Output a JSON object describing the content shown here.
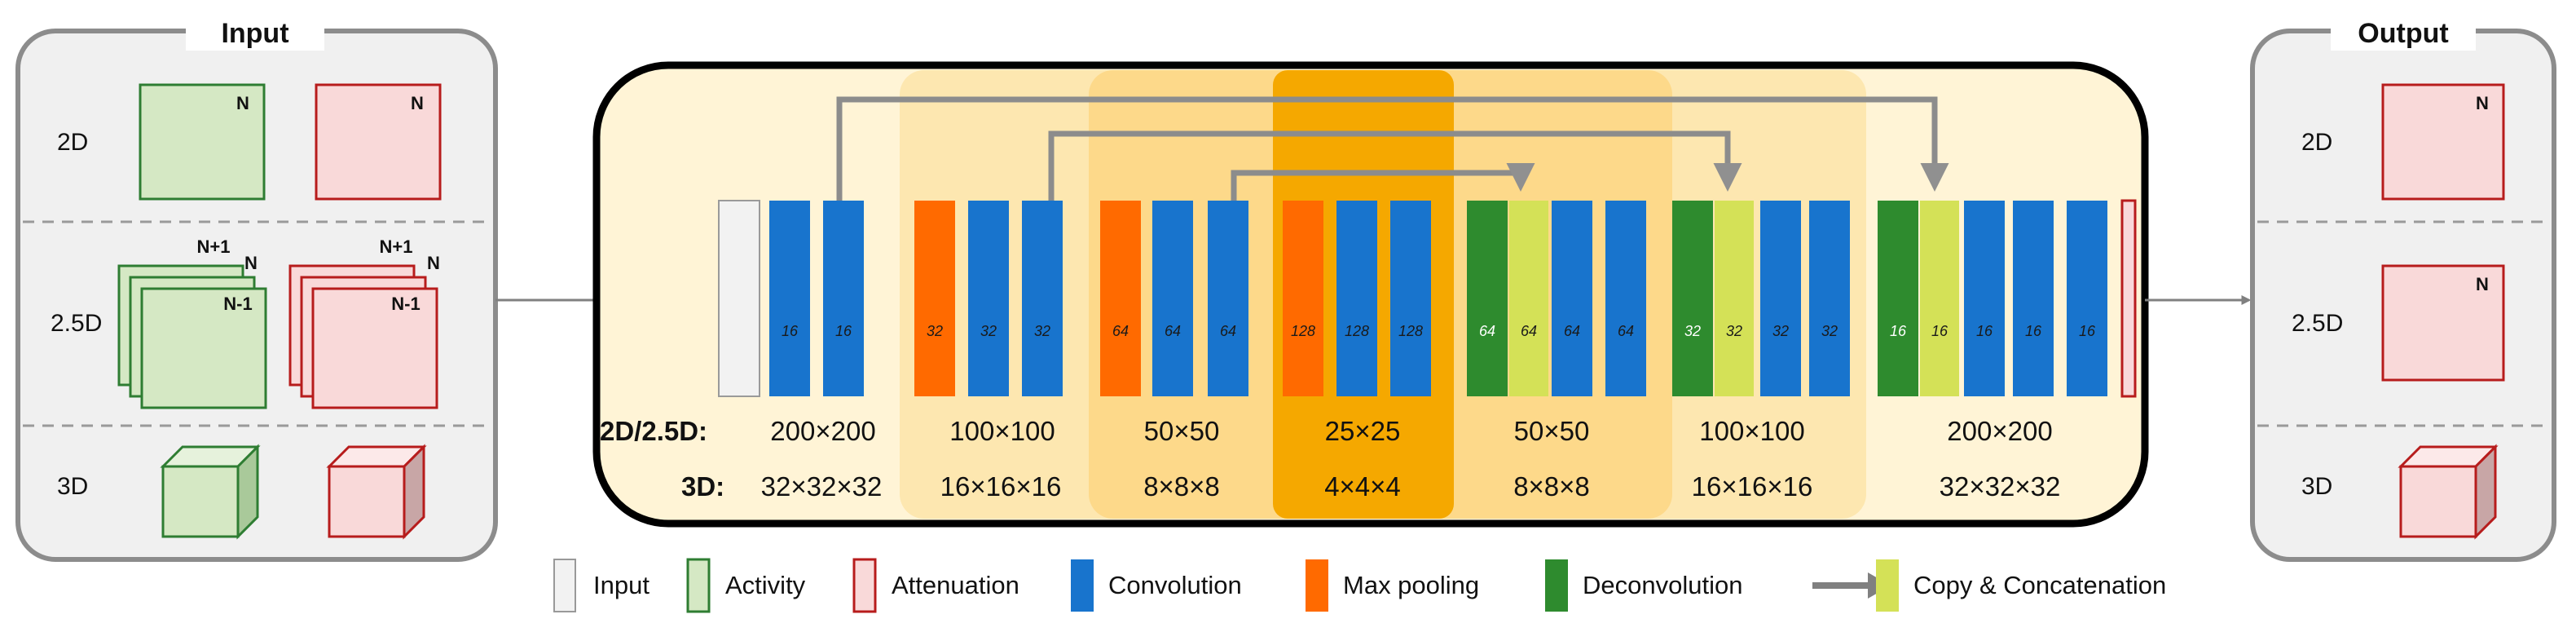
{
  "input_box": {
    "title": "Input",
    "rows": [
      "2D",
      "2.5D",
      "3D"
    ],
    "slice_labels": {
      "n": "N",
      "n_plus_1": "N+1",
      "n_minus_1": "N-1"
    }
  },
  "output_box": {
    "title": "Output",
    "rows": [
      "2D",
      "2.5D",
      "3D"
    ],
    "slice_label": "N"
  },
  "network": {
    "row_labels": {
      "two_d": "2D/2.5D:",
      "three_d": "3D:"
    },
    "levels": [
      {
        "size_2d": "200×200",
        "size_3d": "32×32×32"
      },
      {
        "size_2d": "100×100",
        "size_3d": "16×16×16"
      },
      {
        "size_2d": "50×50",
        "size_3d": "8×8×8"
      },
      {
        "size_2d": "25×25",
        "size_3d": "4×4×4"
      },
      {
        "size_2d": "50×50",
        "size_3d": "8×8×8"
      },
      {
        "size_2d": "100×100",
        "size_3d": "16×16×16"
      },
      {
        "size_2d": "200×200",
        "size_3d": "32×32×32"
      }
    ],
    "layers": [
      {
        "type": "input",
        "label": ""
      },
      {
        "type": "conv",
        "label": "16"
      },
      {
        "type": "conv",
        "label": "16"
      },
      {
        "type": "pool",
        "label": "32"
      },
      {
        "type": "conv",
        "label": "32"
      },
      {
        "type": "conv",
        "label": "32"
      },
      {
        "type": "pool",
        "label": "64"
      },
      {
        "type": "conv",
        "label": "64"
      },
      {
        "type": "conv",
        "label": "64"
      },
      {
        "type": "pool",
        "label": "128"
      },
      {
        "type": "conv",
        "label": "128"
      },
      {
        "type": "conv",
        "label": "128"
      },
      {
        "type": "deconv",
        "label": "64"
      },
      {
        "type": "concat",
        "label": "64"
      },
      {
        "type": "conv",
        "label": "64"
      },
      {
        "type": "conv",
        "label": "64"
      },
      {
        "type": "deconv",
        "label": "32"
      },
      {
        "type": "concat",
        "label": "32"
      },
      {
        "type": "conv",
        "label": "32"
      },
      {
        "type": "conv",
        "label": "32"
      },
      {
        "type": "deconv",
        "label": "16"
      },
      {
        "type": "concat",
        "label": "16"
      },
      {
        "type": "conv",
        "label": "16"
      },
      {
        "type": "conv",
        "label": "16"
      },
      {
        "type": "conv",
        "label": "16"
      },
      {
        "type": "output",
        "label": ""
      }
    ]
  },
  "legend": [
    {
      "key": "input",
      "label": "Input"
    },
    {
      "key": "activity",
      "label": "Activity"
    },
    {
      "key": "attenuation",
      "label": "Attenuation"
    },
    {
      "key": "conv",
      "label": "Convolution"
    },
    {
      "key": "pool",
      "label": "Max pooling"
    },
    {
      "key": "deconv",
      "label": "Deconvolution"
    },
    {
      "key": "concat",
      "label": "Copy & Concatenation"
    }
  ],
  "colors": {
    "conv": "#1874CD",
    "pool": "#FF6A00",
    "deconv": "#2E8B2E",
    "concat": "#D4E157",
    "input": "#F2F2F2",
    "activity_fill": "#D5E8C4",
    "activity_edge": "#2E7D32",
    "atten_fill": "#F9D9D9",
    "atten_edge": "#B71C1C",
    "band1": "#FDE7B0",
    "band2": "#FDD98A",
    "band3": "#FCC74D",
    "band4": "#F5A800",
    "panel": "#FFF4D6",
    "arrow": "#808080"
  }
}
